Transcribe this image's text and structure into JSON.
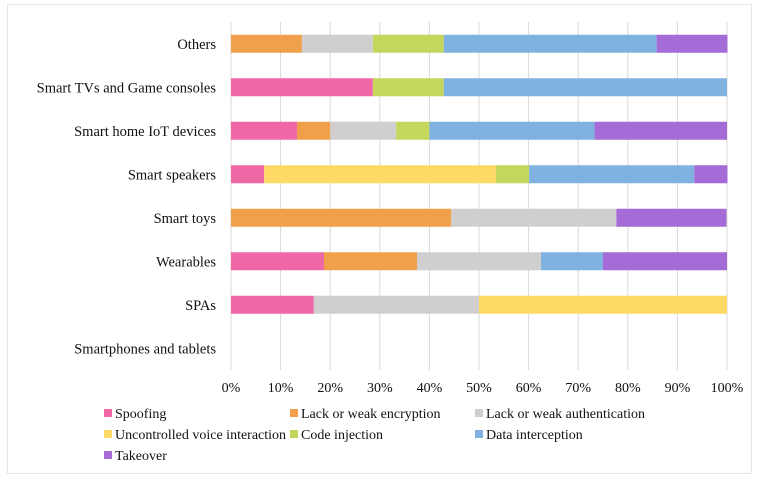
{
  "chart_data": {
    "type": "bar",
    "orientation": "horizontal",
    "stacked": "percent",
    "title": "",
    "xlabel": "",
    "ylabel": "",
    "xlim": [
      0,
      100
    ],
    "xticks": [
      "0%",
      "10%",
      "20%",
      "30%",
      "40%",
      "50%",
      "60%",
      "70%",
      "80%",
      "90%",
      "100%"
    ],
    "grid": "vertical",
    "legend_position": "bottom",
    "categories": [
      "Others",
      "Smart TVs and Game consoles",
      "Smart home IoT devices",
      "Smart speakers",
      "Smart toys",
      "Wearables",
      "SPAs",
      "Smartphones and tablets"
    ],
    "series": [
      {
        "name": "Spoofing",
        "color": "#f067a6",
        "values": [
          0,
          28.6,
          13.3,
          6.7,
          0,
          18.75,
          16.7,
          0
        ]
      },
      {
        "name": "Lack or weak encryption",
        "color": "#f0a04b",
        "values": [
          14.3,
          0,
          6.7,
          0,
          44.4,
          18.75,
          0,
          0
        ]
      },
      {
        "name": "Lack or weak authentication",
        "color": "#d0cece",
        "values": [
          14.3,
          0,
          13.3,
          0,
          33.3,
          25.0,
          33.3,
          0
        ]
      },
      {
        "name": "Uncontrolled voice interaction",
        "color": "#ffd966",
        "values": [
          0,
          0,
          0,
          46.7,
          0,
          0,
          50.0,
          0
        ]
      },
      {
        "name": "Code injection",
        "color": "#c5d65c",
        "values": [
          14.3,
          14.3,
          6.7,
          6.7,
          0,
          0,
          0,
          0
        ]
      },
      {
        "name": "Data interception",
        "color": "#7fb2e0",
        "values": [
          42.9,
          57.1,
          33.3,
          33.3,
          0,
          12.5,
          0,
          0
        ]
      },
      {
        "name": "Takeover",
        "color": "#a56bd6",
        "values": [
          14.3,
          0,
          26.7,
          6.7,
          22.2,
          25.0,
          0,
          0
        ]
      }
    ]
  }
}
